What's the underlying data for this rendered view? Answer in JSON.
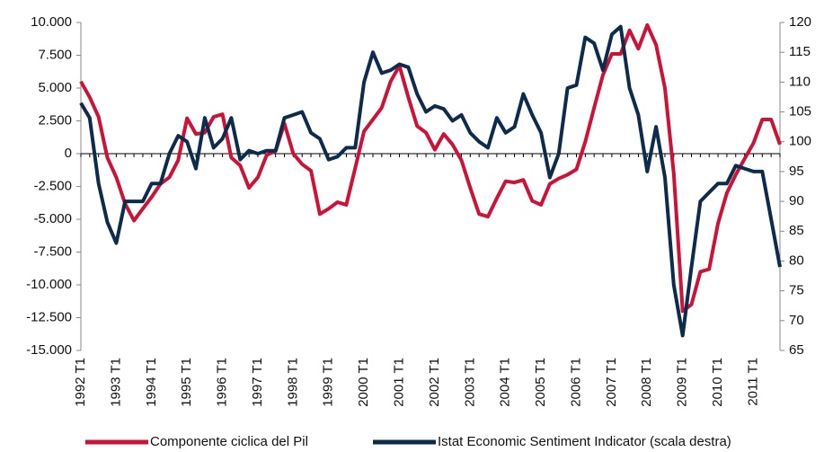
{
  "chart_data": {
    "type": "line",
    "categories": [
      "1992 T1",
      null,
      null,
      null,
      "1993 T1",
      null,
      null,
      null,
      "1994 T1",
      null,
      null,
      null,
      "1995 T1",
      null,
      null,
      null,
      "1996 T1",
      null,
      null,
      null,
      "1997 T1",
      null,
      null,
      null,
      "1998 T1",
      null,
      null,
      null,
      "1999 T1",
      null,
      null,
      null,
      "2000 T1",
      null,
      null,
      null,
      "2001 T1",
      null,
      null,
      null,
      "2002 T1",
      null,
      null,
      null,
      "2003 T1",
      null,
      null,
      null,
      "2004 T1",
      null,
      null,
      null,
      "2005 T1",
      null,
      null,
      null,
      "2006 T1",
      null,
      null,
      null,
      "2007 T1",
      null,
      null,
      null,
      "2008 T1",
      null,
      null,
      null,
      "2009 T1",
      null,
      null,
      null,
      "2010 T1",
      null,
      null,
      null,
      "2011 T1",
      null,
      null,
      null
    ],
    "series": [
      {
        "name": "Componente ciclica del Pil",
        "color": "#cc1236",
        "values": [
          5500,
          4300,
          2800,
          -300,
          -1800,
          -3800,
          -5100,
          -4200,
          -3300,
          -2300,
          -1800,
          -500,
          2700,
          1500,
          1600,
          2800,
          3000,
          -300,
          -900,
          -2600,
          -1800,
          -100,
          200,
          2300,
          0,
          -800,
          -1300,
          -4600,
          -4200,
          -3700,
          -3900,
          -1100,
          1700,
          2600,
          3500,
          5500,
          6700,
          4300,
          2100,
          1600,
          300,
          1500,
          700,
          -500,
          -2600,
          -4600,
          -4800,
          -3400,
          -2100,
          -2200,
          -2000,
          -3600,
          -3900,
          -2300,
          -1900,
          -1600,
          -1200,
          900,
          3500,
          6000,
          7600,
          7600,
          9400,
          8000,
          9800,
          8300,
          5000,
          -1500,
          -12000,
          -11500,
          -9000,
          -8800,
          -5300,
          -3000,
          -1600,
          -400,
          800,
          2600,
          2600,
          700
        ]
      },
      {
        "name": "Istat Economic Sentiment Indicator (scala destra)",
        "color": "#0d2b4c",
        "axis": "y2",
        "values": [
          106.5,
          104,
          93,
          86.5,
          83,
          90,
          90,
          90,
          93,
          93,
          98,
          101,
          100,
          95.5,
          104,
          99,
          100.5,
          104,
          97,
          98.5,
          98,
          98.5,
          98.5,
          104,
          104.5,
          105,
          101.5,
          100.5,
          97,
          97.5,
          99,
          99,
          110,
          115,
          111.5,
          112,
          113,
          112.5,
          108,
          105,
          106,
          105.5,
          103.5,
          104.5,
          101.5,
          100,
          99,
          104,
          101.5,
          102.5,
          108,
          104.5,
          101.5,
          94,
          98,
          109,
          109.5,
          117.5,
          116.5,
          112,
          118,
          119.3,
          109,
          104.5,
          95,
          102.5,
          94,
          76,
          67.5,
          79,
          90,
          91.5,
          93,
          93,
          96,
          95.5,
          95,
          95,
          87,
          79
        ]
      }
    ],
    "ylim": [
      -15000,
      10000
    ],
    "yticks": [
      {
        "value": -15000,
        "label": "-15.000"
      },
      {
        "value": -12500,
        "label": "-12.500"
      },
      {
        "value": -10000,
        "label": "-10.000"
      },
      {
        "value": -7500,
        "label": "-7.500"
      },
      {
        "value": -5000,
        "label": "-5.000"
      },
      {
        "value": -2500,
        "label": "-2.500"
      },
      0,
      {
        "value": 2500,
        "label": "2.500"
      },
      {
        "value": 5000,
        "label": "5.000"
      },
      {
        "value": 7500,
        "label": "7.500"
      },
      {
        "value": 10000,
        "label": "10.000"
      }
    ],
    "y2lim": [
      65,
      120
    ],
    "y2ticks": [
      65,
      70,
      75,
      80,
      85,
      90,
      95,
      100,
      105,
      110,
      115,
      120
    ],
    "legend": "bottom"
  }
}
